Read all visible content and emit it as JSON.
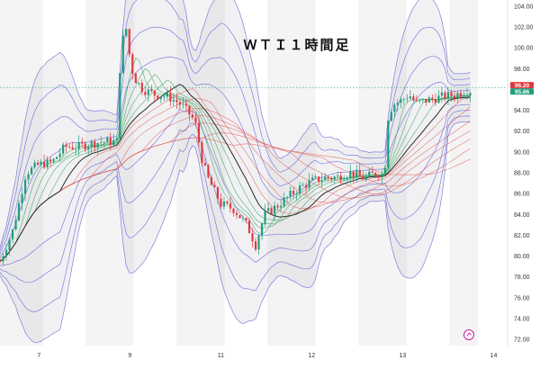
{
  "chart_data": {
    "type": "candlestick",
    "title": "ＷＴＩ１時間足",
    "ylim": [
      72,
      105
    ],
    "y_ticks": [
      "72.00",
      "74.00",
      "76.00",
      "78.00",
      "80.00",
      "82.00",
      "84.00",
      "86.00",
      "88.00",
      "90.00",
      "92.00",
      "94.00",
      "96.00",
      "98.00",
      "100.00",
      "102.00",
      "104.00"
    ],
    "x_ticks": [
      {
        "label": "7",
        "t": 3
      },
      {
        "label": "9",
        "t": 10
      },
      {
        "label": "11",
        "t": 17
      },
      {
        "label": "12",
        "t": 24
      },
      {
        "label": "13",
        "t": 31
      },
      {
        "label": "14",
        "t": 38
      }
    ],
    "price_labels": {
      "upper": "96.20",
      "lower": "95.86"
    },
    "price_label_values": {
      "upper": 96.2,
      "lower": 95.86
    },
    "close_series": [
      [
        0,
        79.5
      ],
      [
        1,
        82.5
      ],
      [
        2,
        88
      ],
      [
        3,
        88.8
      ],
      [
        4,
        89
      ],
      [
        5,
        90.5
      ],
      [
        6,
        90.5
      ],
      [
        7,
        90.8
      ],
      [
        8,
        91
      ],
      [
        9,
        91
      ],
      [
        9.3,
        100
      ],
      [
        9.7,
        102
      ],
      [
        10,
        99
      ],
      [
        10.3,
        97.2
      ],
      [
        11,
        96
      ],
      [
        12,
        95.5
      ],
      [
        13,
        95.3
      ],
      [
        14,
        94.5
      ],
      [
        15,
        93
      ],
      [
        15.6,
        89
      ],
      [
        16,
        87.5
      ],
      [
        17,
        85
      ],
      [
        18,
        84.5
      ],
      [
        19,
        83
      ],
      [
        19.7,
        81
      ],
      [
        20,
        82.5
      ],
      [
        20.4,
        84
      ],
      [
        21,
        84.5
      ],
      [
        22,
        85.5
      ],
      [
        23,
        86.5
      ],
      [
        24,
        87.2
      ],
      [
        25,
        87.5
      ],
      [
        26,
        87.6
      ],
      [
        27,
        88
      ],
      [
        28,
        87.5
      ],
      [
        29,
        88
      ],
      [
        29.6,
        87.8
      ],
      [
        29.8,
        93
      ],
      [
        30.2,
        94.5
      ],
      [
        31,
        95
      ],
      [
        31.5,
        95.5
      ],
      [
        32,
        94.7
      ],
      [
        33,
        95
      ],
      [
        34,
        95.3
      ],
      [
        35,
        95.5
      ],
      [
        36,
        95.9
      ]
    ],
    "bands_center": "moving average of close",
    "band_count": 4,
    "ma_ribbon": "multiple moving averages (green, red)",
    "grid": false,
    "legend": "none"
  }
}
